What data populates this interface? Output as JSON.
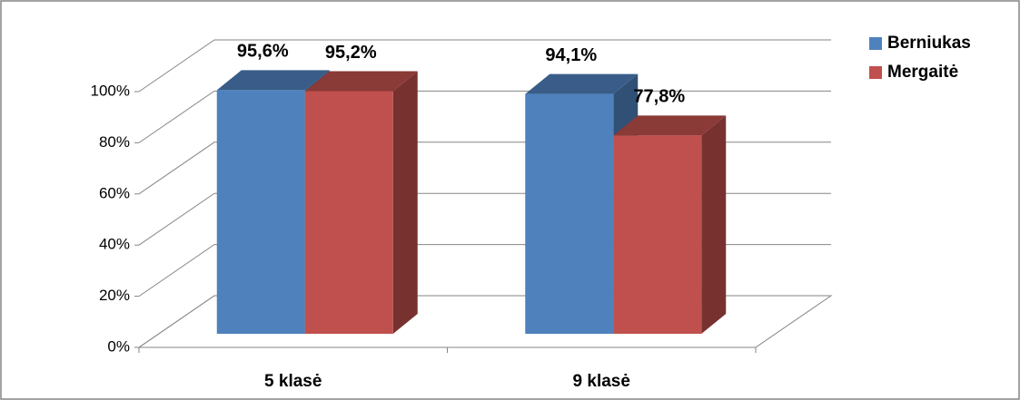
{
  "chart_data": {
    "type": "bar3d",
    "categories": [
      "5 klasė",
      "9 klasė"
    ],
    "series": [
      {
        "name": "Berniukas",
        "color": "#4f81bd",
        "values": [
          95.6,
          94.1
        ],
        "value_labels": [
          "95,6%",
          "94,1%"
        ]
      },
      {
        "name": "Mergaitė",
        "color": "#c0504d",
        "values": [
          95.2,
          77.8
        ],
        "value_labels": [
          "95,2%",
          "77,8%"
        ]
      }
    ],
    "ylim": [
      0,
      100
    ],
    "yticks": [
      {
        "value": 0,
        "label": "0%"
      },
      {
        "value": 20,
        "label": "20%"
      },
      {
        "value": 40,
        "label": "40%"
      },
      {
        "value": 60,
        "label": "60%"
      },
      {
        "value": 80,
        "label": "80%"
      },
      {
        "value": 100,
        "label": "100%"
      }
    ],
    "grid": true,
    "legend": "top-right"
  }
}
